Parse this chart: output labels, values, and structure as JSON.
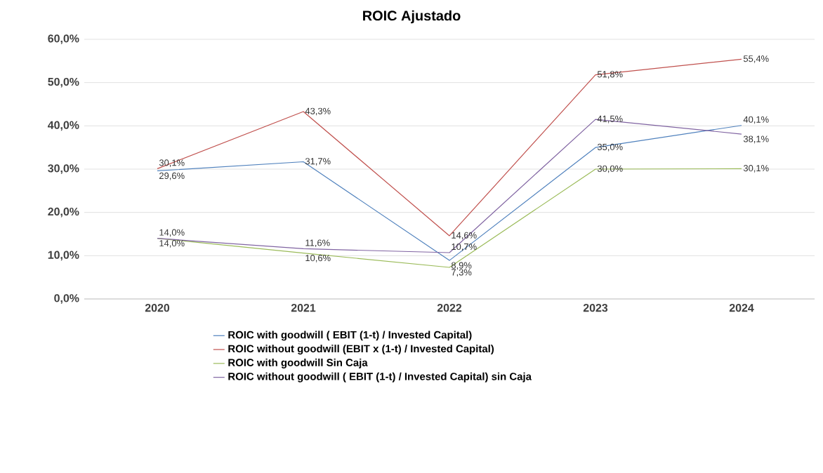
{
  "chart_data": {
    "type": "line",
    "title": "ROIC Ajustado",
    "categories": [
      "2020",
      "2021",
      "2022",
      "2023",
      "2024"
    ],
    "series": [
      {
        "name": "ROIC with goodwill ( EBIT (1-t) / Invested Capital)",
        "color": "#4f81bd",
        "values": [
          29.6,
          31.7,
          8.9,
          35.0,
          40.1
        ],
        "value_labels": [
          "29,6%",
          "31,7%",
          "8,9%",
          "35,0%",
          "40,1%"
        ]
      },
      {
        "name": "ROIC without goodwill (EBIT x (1-t) / Invested Capital)",
        "color": "#c0504d",
        "values": [
          30.1,
          43.3,
          14.6,
          51.8,
          55.4
        ],
        "value_labels": [
          "30,1%",
          "43,3%",
          "14,6%",
          "51,8%",
          "55,4%"
        ]
      },
      {
        "name": "ROIC with goodwill Sin Caja",
        "color": "#9bbb59",
        "values": [
          14.0,
          10.6,
          7.3,
          30.0,
          30.1
        ],
        "value_labels": [
          "14,0%",
          "10,6%",
          "7,3%",
          "30,0%",
          "30,1%"
        ]
      },
      {
        "name": "ROIC without goodwill ( EBIT (1-t) / Invested Capital) sin Caja",
        "color": "#8064a2",
        "values": [
          14.0,
          11.6,
          10.7,
          41.5,
          38.1
        ],
        "value_labels": [
          "14,0%",
          "11,6%",
          "10,7%",
          "41,5%",
          "38,1%"
        ]
      }
    ],
    "ylim": [
      0,
      60
    ],
    "yticks": [
      {
        "value": 0,
        "label": "0,0%"
      },
      {
        "value": 10,
        "label": "10,0%"
      },
      {
        "value": 20,
        "label": "20,0%"
      },
      {
        "value": 30,
        "label": "30,0%"
      },
      {
        "value": 40,
        "label": "40,0%"
      },
      {
        "value": 50,
        "label": "50,0%"
      },
      {
        "value": 60,
        "label": "60,0%"
      }
    ],
    "grid": "y",
    "legend": "bottom",
    "marker": "none",
    "line_style": "solid"
  }
}
